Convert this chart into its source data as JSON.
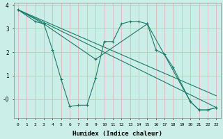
{
  "xlabel": "Humidex (Indice chaleur)",
  "background_color": "#cceee8",
  "grid_color": "#e8b4b4",
  "line_color": "#1a7a6a",
  "xlim": [
    -0.5,
    23.5
  ],
  "ylim": [
    -0.8,
    4.1
  ],
  "ytick_vals": [
    4,
    3,
    2,
    1,
    0
  ],
  "ytick_labels": [
    "4",
    "3",
    "2",
    "1",
    "-0"
  ],
  "xtick_vals": [
    0,
    1,
    2,
    3,
    4,
    5,
    6,
    7,
    8,
    9,
    10,
    11,
    12,
    13,
    14,
    15,
    16,
    17,
    18,
    19,
    20,
    21,
    22,
    23
  ],
  "series": [
    {
      "x": [
        0,
        2,
        3,
        4,
        5,
        6,
        7,
        8,
        9,
        10,
        11,
        12,
        13,
        14,
        15,
        16,
        17,
        18,
        20,
        21,
        22,
        23
      ],
      "y": [
        3.8,
        3.3,
        3.2,
        2.1,
        0.85,
        -0.3,
        -0.25,
        -0.25,
        0.9,
        2.45,
        2.45,
        3.2,
        3.3,
        3.3,
        3.2,
        2.1,
        1.9,
        1.35,
        -0.1,
        -0.45,
        -0.45,
        -0.35
      ],
      "marker": true
    },
    {
      "x": [
        0,
        3,
        9,
        15,
        20,
        21,
        22,
        23
      ],
      "y": [
        3.8,
        3.2,
        1.7,
        3.2,
        -0.1,
        -0.45,
        -0.45,
        -0.35
      ],
      "marker": true
    },
    {
      "x": [
        0,
        23
      ],
      "y": [
        3.8,
        -0.35
      ],
      "marker": false
    },
    {
      "x": [
        0,
        23
      ],
      "y": [
        3.8,
        0.15
      ],
      "marker": false
    }
  ]
}
